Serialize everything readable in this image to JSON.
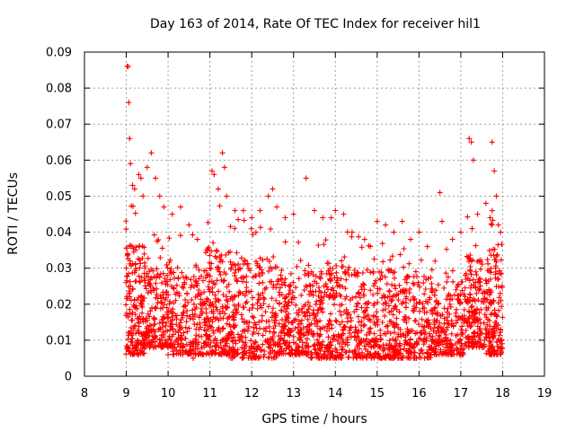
{
  "chart_data": {
    "type": "scatter",
    "title": "Day 163 of 2014, Rate Of TEC Index for receiver hil1",
    "xlabel": "GPS time / hours",
    "ylabel": "ROTI / TECUs",
    "xlim": [
      8,
      19
    ],
    "ylim": [
      0,
      0.09
    ],
    "xticks": [
      8,
      9,
      10,
      11,
      12,
      13,
      14,
      15,
      16,
      17,
      18,
      19
    ],
    "yticks": [
      0,
      0.01,
      0.02,
      0.03,
      0.04,
      0.05,
      0.06,
      0.07,
      0.08,
      0.09
    ],
    "xtick_labels": [
      "8",
      "9",
      "10",
      "11",
      "12",
      "13",
      "14",
      "15",
      "16",
      "17",
      "18",
      "19"
    ],
    "ytick_labels": [
      "0",
      "0.01",
      "0.02",
      "0.03",
      "0.04",
      "0.05",
      "0.06",
      "0.07",
      "0.08",
      "0.09"
    ],
    "grid": true,
    "marker": "plus",
    "color": "#ff0000",
    "series": [
      {
        "name": "hil1",
        "points": [
          [
            9.02,
            0.086
          ],
          [
            9.05,
            0.086
          ],
          [
            9.06,
            0.076
          ],
          [
            9.08,
            0.066
          ],
          [
            9.1,
            0.059
          ],
          [
            9.15,
            0.053
          ],
          [
            9.2,
            0.052
          ],
          [
            9.3,
            0.056
          ],
          [
            9.35,
            0.055
          ],
          [
            9.4,
            0.05
          ],
          [
            9.5,
            0.058
          ],
          [
            9.6,
            0.062
          ],
          [
            9.7,
            0.055
          ],
          [
            9.8,
            0.05
          ],
          [
            9.9,
            0.047
          ],
          [
            10.1,
            0.045
          ],
          [
            10.3,
            0.047
          ],
          [
            10.5,
            0.042
          ],
          [
            10.7,
            0.038
          ],
          [
            11.05,
            0.057
          ],
          [
            11.1,
            0.056
          ],
          [
            11.2,
            0.052
          ],
          [
            11.3,
            0.062
          ],
          [
            11.35,
            0.058
          ],
          [
            11.4,
            0.05
          ],
          [
            11.6,
            0.046
          ],
          [
            11.8,
            0.046
          ],
          [
            12.0,
            0.044
          ],
          [
            12.2,
            0.046
          ],
          [
            12.4,
            0.05
          ],
          [
            12.5,
            0.052
          ],
          [
            12.6,
            0.047
          ],
          [
            12.8,
            0.044
          ],
          [
            13.0,
            0.045
          ],
          [
            13.3,
            0.055
          ],
          [
            13.5,
            0.046
          ],
          [
            13.7,
            0.044
          ],
          [
            13.9,
            0.044
          ],
          [
            14.0,
            0.046
          ],
          [
            14.2,
            0.045
          ],
          [
            14.4,
            0.04
          ],
          [
            14.7,
            0.038
          ],
          [
            15.0,
            0.043
          ],
          [
            15.2,
            0.042
          ],
          [
            15.4,
            0.04
          ],
          [
            15.6,
            0.043
          ],
          [
            15.8,
            0.038
          ],
          [
            16.0,
            0.04
          ],
          [
            16.2,
            0.036
          ],
          [
            16.5,
            0.051
          ],
          [
            16.55,
            0.043
          ],
          [
            16.8,
            0.038
          ],
          [
            17.0,
            0.04
          ],
          [
            17.2,
            0.066
          ],
          [
            17.25,
            0.065
          ],
          [
            17.3,
            0.06
          ],
          [
            17.4,
            0.045
          ],
          [
            17.6,
            0.048
          ],
          [
            17.7,
            0.044
          ],
          [
            17.75,
            0.065
          ],
          [
            17.8,
            0.057
          ],
          [
            17.85,
            0.05
          ],
          [
            17.9,
            0.042
          ],
          [
            17.95,
            0.04
          ],
          [
            9.0,
            0.03
          ],
          [
            9.1,
            0.025
          ],
          [
            9.2,
            0.007
          ],
          [
            9.3,
            0.012
          ],
          [
            9.5,
            0.009
          ],
          [
            9.7,
            0.011
          ],
          [
            10.0,
            0.006
          ],
          [
            10.2,
            0.01
          ],
          [
            10.6,
            0.005
          ],
          [
            10.8,
            0.008
          ],
          [
            11.0,
            0.03
          ],
          [
            11.5,
            0.005
          ],
          [
            12.0,
            0.008
          ],
          [
            12.3,
            0.006
          ],
          [
            12.8,
            0.009
          ],
          [
            13.1,
            0.007
          ],
          [
            13.6,
            0.006
          ],
          [
            14.1,
            0.009
          ],
          [
            14.5,
            0.006
          ],
          [
            14.9,
            0.01
          ],
          [
            15.3,
            0.008
          ],
          [
            15.5,
            0.005
          ],
          [
            15.9,
            0.009
          ],
          [
            16.3,
            0.008
          ],
          [
            16.7,
            0.01
          ],
          [
            17.1,
            0.009
          ],
          [
            17.5,
            0.012
          ],
          [
            17.8,
            0.006
          ],
          [
            17.95,
            0.01
          ]
        ],
        "bands": [
          {
            "x_range": [
              8.98,
              9.45
            ],
            "y_range": [
              0.006,
              0.05
            ],
            "count": 190
          },
          {
            "x_range": [
              9.45,
              10.1
            ],
            "y_range": [
              0.008,
              0.045
            ],
            "count": 200
          },
          {
            "x_range": [
              10.1,
              10.9
            ],
            "y_range": [
              0.006,
              0.04
            ],
            "count": 210
          },
          {
            "x_range": [
              10.9,
              11.5
            ],
            "y_range": [
              0.006,
              0.05
            ],
            "count": 200
          },
          {
            "x_range": [
              11.5,
              12.6
            ],
            "y_range": [
              0.005,
              0.045
            ],
            "count": 300
          },
          {
            "x_range": [
              12.6,
              13.4
            ],
            "y_range": [
              0.006,
              0.04
            ],
            "count": 230
          },
          {
            "x_range": [
              13.4,
              14.5
            ],
            "y_range": [
              0.005,
              0.042
            ],
            "count": 300
          },
          {
            "x_range": [
              14.5,
              15.4
            ],
            "y_range": [
              0.005,
              0.04
            ],
            "count": 240
          },
          {
            "x_range": [
              15.4,
              16.3
            ],
            "y_range": [
              0.005,
              0.038
            ],
            "count": 240
          },
          {
            "x_range": [
              16.3,
              17.1
            ],
            "y_range": [
              0.006,
              0.036
            ],
            "count": 210
          },
          {
            "x_range": [
              17.1,
              17.6
            ],
            "y_range": [
              0.008,
              0.045
            ],
            "count": 170
          },
          {
            "x_range": [
              17.6,
              18.0
            ],
            "y_range": [
              0.006,
              0.048
            ],
            "count": 160
          }
        ]
      }
    ]
  }
}
